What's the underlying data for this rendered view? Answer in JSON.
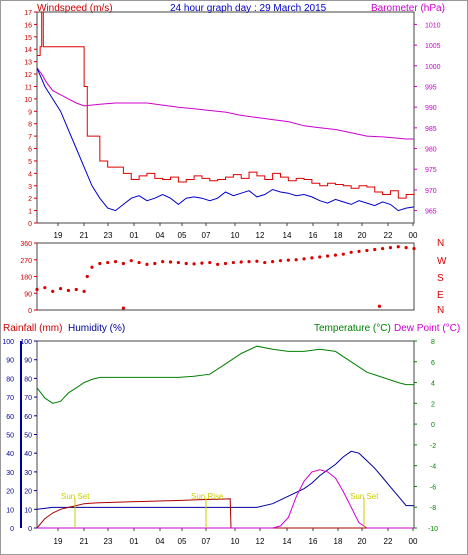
{
  "header": {
    "left_title": "Windspeed (m/s)",
    "center_title": "24 hour graph day : 29 March 2015",
    "right_title": "Barometer (hPa)"
  },
  "colors": {
    "wind_axis": "#cc0000",
    "baro": "#cc00cc",
    "avg_wind": "#0000cc",
    "gust": "#dd0000",
    "temp": "#008000",
    "humidity": "#000099",
    "sun": "#cccc00"
  },
  "x_tick_labels": [
    "19",
    "21",
    "23",
    "01",
    "04",
    "05",
    "07",
    "10",
    "12",
    "14",
    "16",
    "18",
    "20",
    "22",
    "00"
  ],
  "compass_labels": [
    "N",
    "W",
    "S",
    "E",
    "N"
  ],
  "bottom_titles": {
    "rainfall": "Rainfall (mm)",
    "humidity": "Humidity (%)",
    "temperature": "Temperature (°C)",
    "dewpoint": "Dew Point (°C)"
  },
  "sun_labels": {
    "sunset": "Sun Set",
    "sunrise": "Sun Rise"
  },
  "chart_data": [
    {
      "type": "line",
      "title": "24 hour graph day : 29 March 2015",
      "ylabel": "Windspeed (m/s)",
      "y2label": "Barometer (hPa)",
      "ylim": [
        0,
        17
      ],
      "y2lim": [
        962,
        1013
      ],
      "yticks": [
        0,
        1,
        2,
        3,
        4,
        5,
        6,
        7,
        8,
        9,
        10,
        11,
        12,
        13,
        14,
        15,
        16,
        17
      ],
      "y2ticks": [
        965,
        970,
        975,
        980,
        985,
        990,
        995,
        1000,
        1005,
        1010
      ],
      "x_hours": [
        0,
        24
      ],
      "series": [
        {
          "name": "barometer",
          "axis": "right",
          "x": [
            0,
            0.3,
            0.6,
            1,
            1.5,
            2,
            2.5,
            3,
            4,
            5,
            6,
            7,
            8,
            9,
            10,
            11,
            12,
            13,
            14,
            15,
            16,
            17,
            18,
            19,
            20,
            21,
            22,
            23,
            23.5,
            24
          ],
          "values": [
            999.5,
            998,
            996,
            994,
            993,
            992,
            991,
            990.3,
            990.7,
            991,
            991,
            991,
            990.5,
            990,
            989.6,
            989.2,
            988.8,
            988,
            987.5,
            987,
            986.5,
            985.5,
            985,
            984.6,
            983.8,
            983,
            982.8,
            982.5,
            982.3,
            982.3
          ]
        },
        {
          "name": "wind_avg",
          "axis": "left",
          "x": [
            0,
            0.5,
            1,
            1.5,
            2,
            2.5,
            3,
            3.5,
            4,
            4.5,
            5,
            5.5,
            6,
            6.5,
            7,
            7.5,
            8,
            8.5,
            9,
            9.5,
            10,
            10.5,
            11,
            11.5,
            12,
            12.5,
            13,
            13.5,
            14,
            14.5,
            15,
            15.5,
            16,
            16.5,
            17,
            17.5,
            18,
            18.5,
            19,
            19.5,
            20,
            20.5,
            21,
            21.5,
            22,
            22.5,
            23,
            23.5,
            24
          ],
          "values": [
            12.5,
            11,
            10,
            9,
            7.5,
            6,
            4.5,
            3,
            2,
            1.2,
            1,
            1.5,
            2,
            2.2,
            1.8,
            2,
            2.3,
            2,
            1.5,
            2,
            2.1,
            2,
            1.8,
            2,
            2.5,
            2.2,
            2.4,
            2.6,
            2.1,
            2.3,
            2.7,
            2.5,
            2.4,
            2.2,
            2.3,
            2.1,
            1.8,
            1.6,
            1.9,
            1.7,
            1.5,
            1.8,
            1.6,
            1.4,
            1.7,
            1.5,
            1.0,
            1.2,
            1.3
          ]
        },
        {
          "name": "wind_gust",
          "axis": "left",
          "x": [
            0,
            0.2,
            0.3,
            0.4,
            1,
            2.5,
            3,
            3.2,
            4,
            4.5,
            5,
            5.5,
            6,
            6.5,
            7,
            7.5,
            8,
            8.5,
            9,
            9.5,
            10,
            10.5,
            11,
            11.5,
            12,
            12.5,
            13,
            13.5,
            14,
            14.5,
            15,
            15.5,
            16,
            16.5,
            17,
            17.5,
            18,
            18.5,
            19,
            19.5,
            20,
            20.5,
            21,
            21.5,
            22,
            22.5,
            23,
            23.5,
            24
          ],
          "values": [
            13.5,
            14.2,
            17,
            14.2,
            14.2,
            14.2,
            11,
            7,
            5,
            4.5,
            4.5,
            4,
            3.5,
            3.8,
            4,
            3.6,
            3.5,
            3.7,
            3.3,
            3.5,
            3.8,
            3.6,
            3.4,
            3.5,
            3.7,
            3.9,
            3.6,
            4.1,
            3.8,
            3.5,
            4,
            3.7,
            3.4,
            3.6,
            3.5,
            3.2,
            3,
            3.2,
            3.1,
            3,
            2.8,
            3,
            2.9,
            2.5,
            2.3,
            2.6,
            2.0,
            2.3,
            2.4
          ]
        }
      ]
    },
    {
      "type": "scatter",
      "name": "wind_direction",
      "ylim": [
        0,
        360
      ],
      "yticks": [
        0,
        90,
        180,
        270,
        360
      ],
      "x": [
        0,
        0.5,
        1,
        1.5,
        2,
        2.5,
        3,
        3.2,
        3.5,
        4,
        4.5,
        5,
        5.5,
        6,
        6.5,
        7,
        7.5,
        8,
        8.5,
        9,
        9.5,
        10,
        10.5,
        11,
        11.5,
        12,
        12.5,
        13,
        13.5,
        14,
        14.5,
        15,
        15.5,
        16,
        16.5,
        17,
        17.5,
        18,
        18.5,
        19,
        19.5,
        20,
        20.5,
        21,
        21.5,
        22,
        22.5,
        23,
        23.5,
        24,
        5.5,
        21.8
      ],
      "values": [
        110,
        120,
        100,
        115,
        105,
        110,
        100,
        180,
        230,
        250,
        255,
        260,
        250,
        265,
        255,
        245,
        250,
        260,
        258,
        255,
        250,
        248,
        252,
        255,
        245,
        250,
        255,
        258,
        260,
        262,
        255,
        260,
        265,
        268,
        270,
        275,
        280,
        285,
        290,
        295,
        300,
        310,
        315,
        320,
        325,
        330,
        335,
        340,
        335,
        330,
        10,
        20
      ]
    },
    {
      "type": "line",
      "ylabel": "Humidity (%)",
      "y2label": "Temperature (°C)",
      "ylim": [
        0,
        100
      ],
      "yticks": [
        0,
        10,
        20,
        30,
        40,
        50,
        60,
        70,
        80,
        90,
        100
      ],
      "y2lim": [
        -10,
        8
      ],
      "y2ticks": [
        -10,
        -8,
        -6,
        -4,
        -2,
        0,
        2,
        4,
        6,
        8
      ],
      "series": [
        {
          "name": "temperature",
          "axis": "right",
          "x": [
            0,
            0.5,
            1,
            1.5,
            2,
            2.5,
            3,
            3.5,
            4,
            5,
            6,
            7,
            8,
            9,
            10,
            11,
            12,
            13,
            14,
            15,
            16,
            17,
            18,
            19,
            20,
            21,
            22,
            23,
            23.5,
            24
          ],
          "values": [
            3.5,
            2.5,
            2,
            2.2,
            3,
            3.5,
            4,
            4.3,
            4.5,
            4.5,
            4.5,
            4.5,
            4.5,
            4.5,
            4.6,
            4.8,
            5.8,
            6.8,
            7.5,
            7.2,
            7,
            7,
            7.2,
            7,
            6,
            5,
            4.5,
            4,
            3.8,
            3.8
          ]
        },
        {
          "name": "humidity",
          "axis": "left",
          "x": [
            0,
            1,
            2,
            3,
            4,
            5,
            6,
            7,
            8,
            9,
            10,
            11,
            12,
            13,
            14,
            15,
            16,
            17,
            17.5,
            18,
            18.5,
            19,
            19.5,
            20,
            20.5,
            21,
            21.5,
            22,
            22.5,
            23,
            23.5,
            24
          ],
          "values": [
            10,
            11,
            11,
            11,
            11,
            11,
            11,
            11,
            11,
            11,
            11,
            11,
            11,
            11,
            11,
            13,
            17,
            21,
            24,
            28,
            31,
            34,
            38,
            41,
            40,
            36,
            32,
            27,
            22,
            17,
            12,
            12
          ]
        },
        {
          "name": "rainfall",
          "axis": "left",
          "x": [
            0,
            0.5,
            1,
            1.5,
            2,
            2.5,
            3,
            3.5,
            4,
            5,
            6,
            7,
            8,
            9,
            10,
            11,
            12,
            12.3,
            12.35,
            18,
            24
          ],
          "values": [
            0,
            5,
            8,
            10,
            11,
            12,
            13,
            13.3,
            13.5,
            13.8,
            14,
            14.2,
            14.5,
            14.7,
            15,
            15.3,
            15.5,
            15.6,
            0,
            0,
            0
          ]
        },
        {
          "name": "dew_point",
          "axis": "right",
          "x": [
            0,
            15,
            15.5,
            16,
            16.5,
            17,
            17.5,
            18,
            18.5,
            19,
            19.5,
            20,
            20.5,
            21,
            21.5,
            22,
            24
          ],
          "values": [
            -10,
            -10,
            -9.8,
            -9,
            -7,
            -5.5,
            -4.6,
            -4.4,
            -4.6,
            -5.2,
            -6.5,
            -8,
            -9.5,
            -10,
            -10,
            -10,
            -10
          ]
        }
      ]
    }
  ]
}
